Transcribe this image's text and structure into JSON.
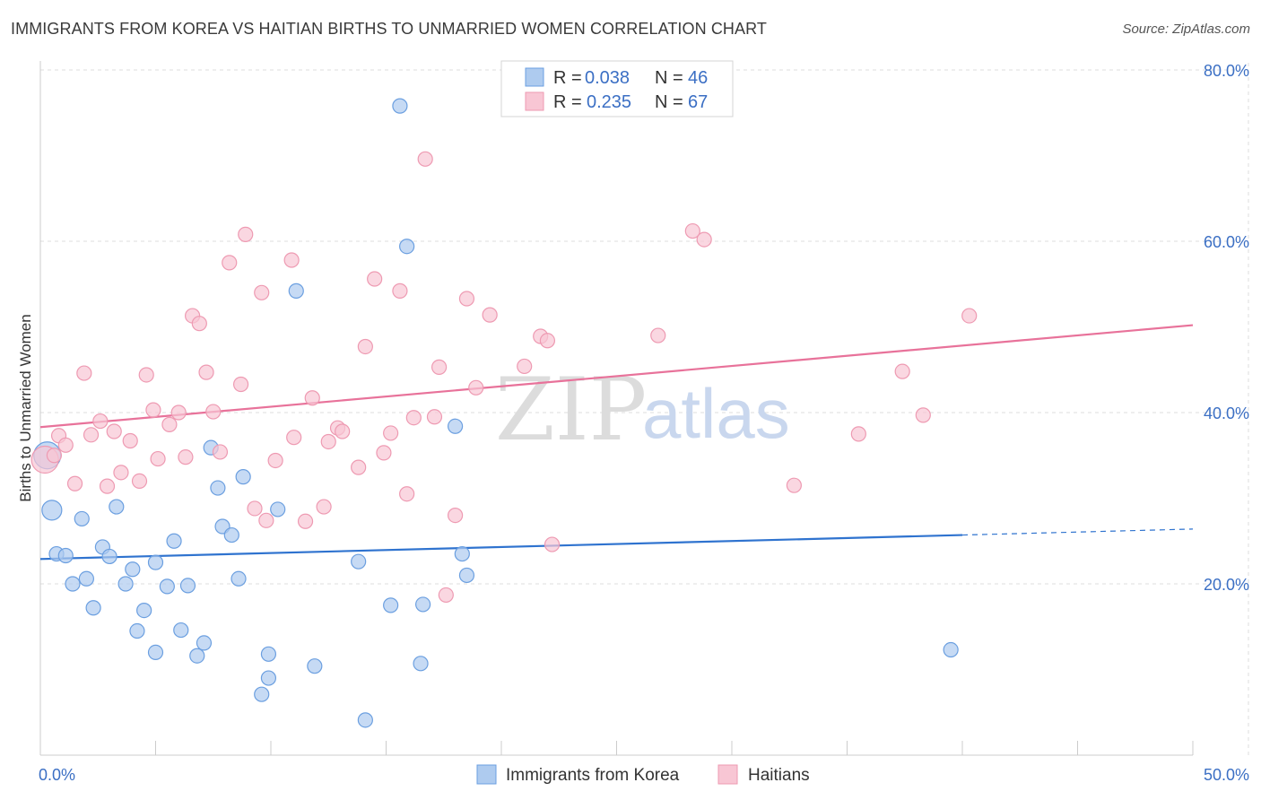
{
  "header": {
    "title": "IMMIGRANTS FROM KOREA VS HAITIAN BIRTHS TO UNMARRIED WOMEN CORRELATION CHART",
    "source": "Source: ZipAtlas.com"
  },
  "watermark": {
    "zip": "ZIP",
    "atlas": "atlas"
  },
  "colors": {
    "korea_fill": "#aecbef",
    "korea_stroke": "#6b9fe0",
    "korea_line": "#2f73cf",
    "haiti_fill": "#f8c6d4",
    "haiti_stroke": "#ee9ab2",
    "haiti_line": "#e8729a",
    "grid": "#dddddd",
    "tick_text": "#3b6fc4"
  },
  "legend": {
    "rows": [
      {
        "r_label": "R =",
        "r_value": "0.038",
        "n_label": "N =",
        "n_value": "46"
      },
      {
        "r_label": "R =",
        "r_value": "0.235",
        "n_label": "N =",
        "n_value": "67"
      }
    ]
  },
  "chart_data": {
    "type": "scatter",
    "title": "IMMIGRANTS FROM KOREA VS HAITIAN BIRTHS TO UNMARRIED WOMEN CORRELATION CHART",
    "xlabel": "",
    "ylabel": "Births to Unmarried Women",
    "xlim": [
      0,
      50
    ],
    "ylim": [
      0,
      80
    ],
    "x_tick_labels": [
      "0.0%",
      "50.0%"
    ],
    "y_ticks": [
      20,
      40,
      60,
      80
    ],
    "y_tick_labels": [
      "20.0%",
      "40.0%",
      "60.0%",
      "80.0%"
    ],
    "grid": true,
    "legend_position": "top-center",
    "series": [
      {
        "name": "Immigrants from Korea",
        "R": 0.038,
        "N": 46,
        "trend": {
          "x0": 0,
          "y0": 22.9,
          "x1": 40,
          "y1": 25.7,
          "dash_to_x": 50,
          "dash_to_y": 26.4
        },
        "points": [
          [
            0.3,
            35.0,
            "large"
          ],
          [
            0.5,
            28.6,
            "medium"
          ],
          [
            0.7,
            23.5
          ],
          [
            1.1,
            23.3
          ],
          [
            1.4,
            20.0
          ],
          [
            1.8,
            27.6
          ],
          [
            2.0,
            20.6
          ],
          [
            2.3,
            17.2
          ],
          [
            2.7,
            24.3
          ],
          [
            3.0,
            23.2
          ],
          [
            3.3,
            29.0
          ],
          [
            3.7,
            20.0
          ],
          [
            4.0,
            21.7
          ],
          [
            4.2,
            14.5
          ],
          [
            4.5,
            16.9
          ],
          [
            5.0,
            22.5
          ],
          [
            5.0,
            12.0
          ],
          [
            5.5,
            19.7
          ],
          [
            5.8,
            25.0
          ],
          [
            6.1,
            14.6
          ],
          [
            6.4,
            19.8
          ],
          [
            6.8,
            11.6
          ],
          [
            7.1,
            13.1
          ],
          [
            7.4,
            35.9
          ],
          [
            7.7,
            31.2
          ],
          [
            7.9,
            26.7
          ],
          [
            8.3,
            25.7
          ],
          [
            8.6,
            20.6
          ],
          [
            8.8,
            32.5
          ],
          [
            9.6,
            7.1
          ],
          [
            9.9,
            11.8
          ],
          [
            9.9,
            9.0
          ],
          [
            10.3,
            28.7
          ],
          [
            11.1,
            54.2
          ],
          [
            11.9,
            10.4
          ],
          [
            13.8,
            22.6
          ],
          [
            14.1,
            4.1
          ],
          [
            15.2,
            17.5
          ],
          [
            15.6,
            75.8
          ],
          [
            15.9,
            59.4
          ],
          [
            16.5,
            10.7
          ],
          [
            16.6,
            17.6
          ],
          [
            18.0,
            38.4
          ],
          [
            18.3,
            23.5
          ],
          [
            18.5,
            21.0
          ],
          [
            39.5,
            12.3
          ]
        ]
      },
      {
        "name": "Haitians",
        "R": 0.235,
        "N": 67,
        "trend": {
          "x0": 0,
          "y0": 38.3,
          "x1": 50,
          "y1": 50.2
        },
        "points": [
          [
            0.2,
            34.5,
            "large"
          ],
          [
            0.6,
            35.0
          ],
          [
            0.8,
            37.3
          ],
          [
            1.1,
            36.2
          ],
          [
            1.5,
            31.7
          ],
          [
            1.9,
            44.6
          ],
          [
            2.2,
            37.4
          ],
          [
            2.6,
            39.0
          ],
          [
            2.9,
            31.4
          ],
          [
            3.2,
            37.8
          ],
          [
            3.5,
            33.0
          ],
          [
            3.9,
            36.7
          ],
          [
            4.3,
            32.0
          ],
          [
            4.6,
            44.4
          ],
          [
            4.9,
            40.3
          ],
          [
            5.1,
            34.6
          ],
          [
            5.6,
            38.6
          ],
          [
            6.0,
            40.0
          ],
          [
            6.3,
            34.8
          ],
          [
            6.6,
            51.3
          ],
          [
            6.9,
            50.4
          ],
          [
            7.2,
            44.7
          ],
          [
            7.5,
            40.1
          ],
          [
            7.8,
            35.4
          ],
          [
            8.2,
            57.5
          ],
          [
            8.7,
            43.3
          ],
          [
            8.9,
            60.8
          ],
          [
            9.3,
            28.8
          ],
          [
            9.6,
            54.0
          ],
          [
            9.8,
            27.4
          ],
          [
            10.2,
            34.4
          ],
          [
            10.9,
            57.8
          ],
          [
            11.0,
            37.1
          ],
          [
            11.5,
            27.3
          ],
          [
            11.8,
            41.7
          ],
          [
            12.3,
            29.0
          ],
          [
            12.5,
            36.6
          ],
          [
            12.9,
            38.2
          ],
          [
            13.1,
            37.8
          ],
          [
            13.8,
            33.6
          ],
          [
            14.1,
            47.7
          ],
          [
            14.5,
            55.6
          ],
          [
            14.9,
            35.3
          ],
          [
            15.2,
            37.6
          ],
          [
            15.6,
            54.2
          ],
          [
            15.9,
            30.5
          ],
          [
            16.2,
            39.4
          ],
          [
            16.7,
            69.6
          ],
          [
            17.1,
            39.5
          ],
          [
            17.3,
            45.3
          ],
          [
            17.6,
            18.7
          ],
          [
            18.0,
            28.0
          ],
          [
            18.5,
            53.3
          ],
          [
            18.9,
            42.9
          ],
          [
            19.5,
            51.4
          ],
          [
            21.0,
            45.4
          ],
          [
            21.7,
            48.9
          ],
          [
            22.0,
            48.4
          ],
          [
            22.2,
            24.6
          ],
          [
            26.8,
            49.0
          ],
          [
            28.3,
            61.2
          ],
          [
            28.8,
            60.2
          ],
          [
            32.7,
            31.5
          ],
          [
            35.5,
            37.5
          ],
          [
            37.4,
            44.8
          ],
          [
            38.3,
            39.7
          ],
          [
            40.3,
            51.3
          ]
        ]
      }
    ]
  },
  "bottom_legend": {
    "items": [
      "Immigrants from Korea",
      "Haitians"
    ]
  }
}
